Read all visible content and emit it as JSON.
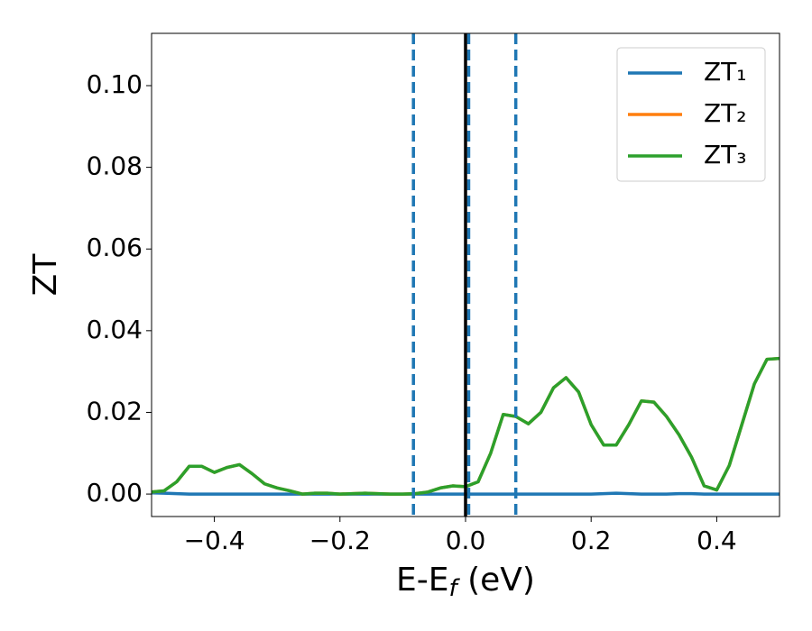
{
  "chart_data": {
    "type": "line",
    "x_label": [
      "E-E",
      "f",
      " (eV)"
    ],
    "y_label": "ZT",
    "x": [
      -0.5,
      -0.48,
      -0.46,
      -0.44,
      -0.42,
      -0.4,
      -0.38,
      -0.36,
      -0.34,
      -0.32,
      -0.3,
      -0.28,
      -0.26,
      -0.24,
      -0.22,
      -0.2,
      -0.18,
      -0.16,
      -0.14,
      -0.12,
      -0.1,
      -0.08,
      -0.06,
      -0.04,
      -0.02,
      0,
      0.02,
      0.04,
      0.06,
      0.08,
      0.1,
      0.12,
      0.14,
      0.16,
      0.18,
      0.2,
      0.22,
      0.24,
      0.26,
      0.28,
      0.3,
      0.32,
      0.34,
      0.36,
      0.38,
      0.4,
      0.42,
      0.44,
      0.46,
      0.48,
      0.5
    ],
    "series": [
      {
        "name": "ZT₁",
        "color": "#1f77b4",
        "values": [
          0.0003,
          0.0002,
          0.0001,
          0,
          0,
          0,
          0,
          0,
          0,
          0,
          0,
          0,
          0,
          0,
          0,
          0,
          0,
          0,
          0,
          0,
          0,
          0,
          0,
          0,
          0,
          0,
          0,
          0,
          0,
          0,
          0,
          0,
          0,
          0,
          0,
          0,
          0.0001,
          0.0002,
          0.0001,
          0,
          0,
          0,
          0.0001,
          0.0001,
          0,
          0,
          0,
          0,
          0,
          0,
          0
        ]
      },
      {
        "name": "ZT₂",
        "color": "#ff7f0e",
        "values": [
          0.0005,
          0.0008,
          0.003,
          0.0068,
          0.0068,
          0.0053,
          0.0065,
          0.0072,
          0.005,
          0.0025,
          0.0015,
          0.0008,
          0,
          0.0002,
          0.0002,
          0,
          0.0001,
          0.0002,
          0.0001,
          0,
          0,
          0.0001,
          0.0005,
          0.0015,
          0.002,
          0.0018,
          0.003,
          0.01,
          0.0195,
          0.019,
          0.0172,
          0.02,
          0.026,
          0.0285,
          0.025,
          0.017,
          0.012,
          0.012,
          0.017,
          0.0228,
          0.0225,
          0.019,
          0.0145,
          0.009,
          0.002,
          0.001,
          0.007,
          0.017,
          0.027,
          0.033,
          0.0332
        ]
      },
      {
        "name": "ZT₃",
        "color": "#2ca02c",
        "values": [
          0.0005,
          0.0008,
          0.003,
          0.0068,
          0.0068,
          0.0053,
          0.0065,
          0.0072,
          0.005,
          0.0025,
          0.0015,
          0.0008,
          0,
          0.0002,
          0.0002,
          0,
          0.0001,
          0.0002,
          0.0001,
          0,
          0,
          0.0001,
          0.0005,
          0.0015,
          0.002,
          0.0018,
          0.003,
          0.01,
          0.0195,
          0.019,
          0.0172,
          0.02,
          0.026,
          0.0285,
          0.025,
          0.017,
          0.012,
          0.012,
          0.017,
          0.0228,
          0.0225,
          0.019,
          0.0145,
          0.009,
          0.002,
          0.001,
          0.007,
          0.017,
          0.027,
          0.033,
          0.0332
        ]
      }
    ],
    "vlines": [
      {
        "x": -0.083,
        "color": "#1f77b4",
        "dashed": true
      },
      {
        "x": 0.005,
        "color": "#1f77b4",
        "dashed": true
      },
      {
        "x": 0.08,
        "color": "#1f77b4",
        "dashed": true
      },
      {
        "x": 0,
        "color": "#000000",
        "dashed": false
      }
    ],
    "xlim": [
      -0.5,
      0.5
    ],
    "xticks": [
      {
        "value": -0.4,
        "label": "−0.4"
      },
      {
        "value": -0.2,
        "label": "−0.2"
      },
      {
        "value": 0,
        "label": "0.0"
      },
      0.2,
      0.4
    ],
    "ylim": [
      -0.0055,
      0.1128
    ],
    "yticks": [
      {
        "value": 0,
        "label": "0.00"
      },
      0.02,
      0.04,
      0.06,
      0.08,
      {
        "value": 0.1,
        "label": "0.10"
      }
    ],
    "legend": "upper right"
  }
}
